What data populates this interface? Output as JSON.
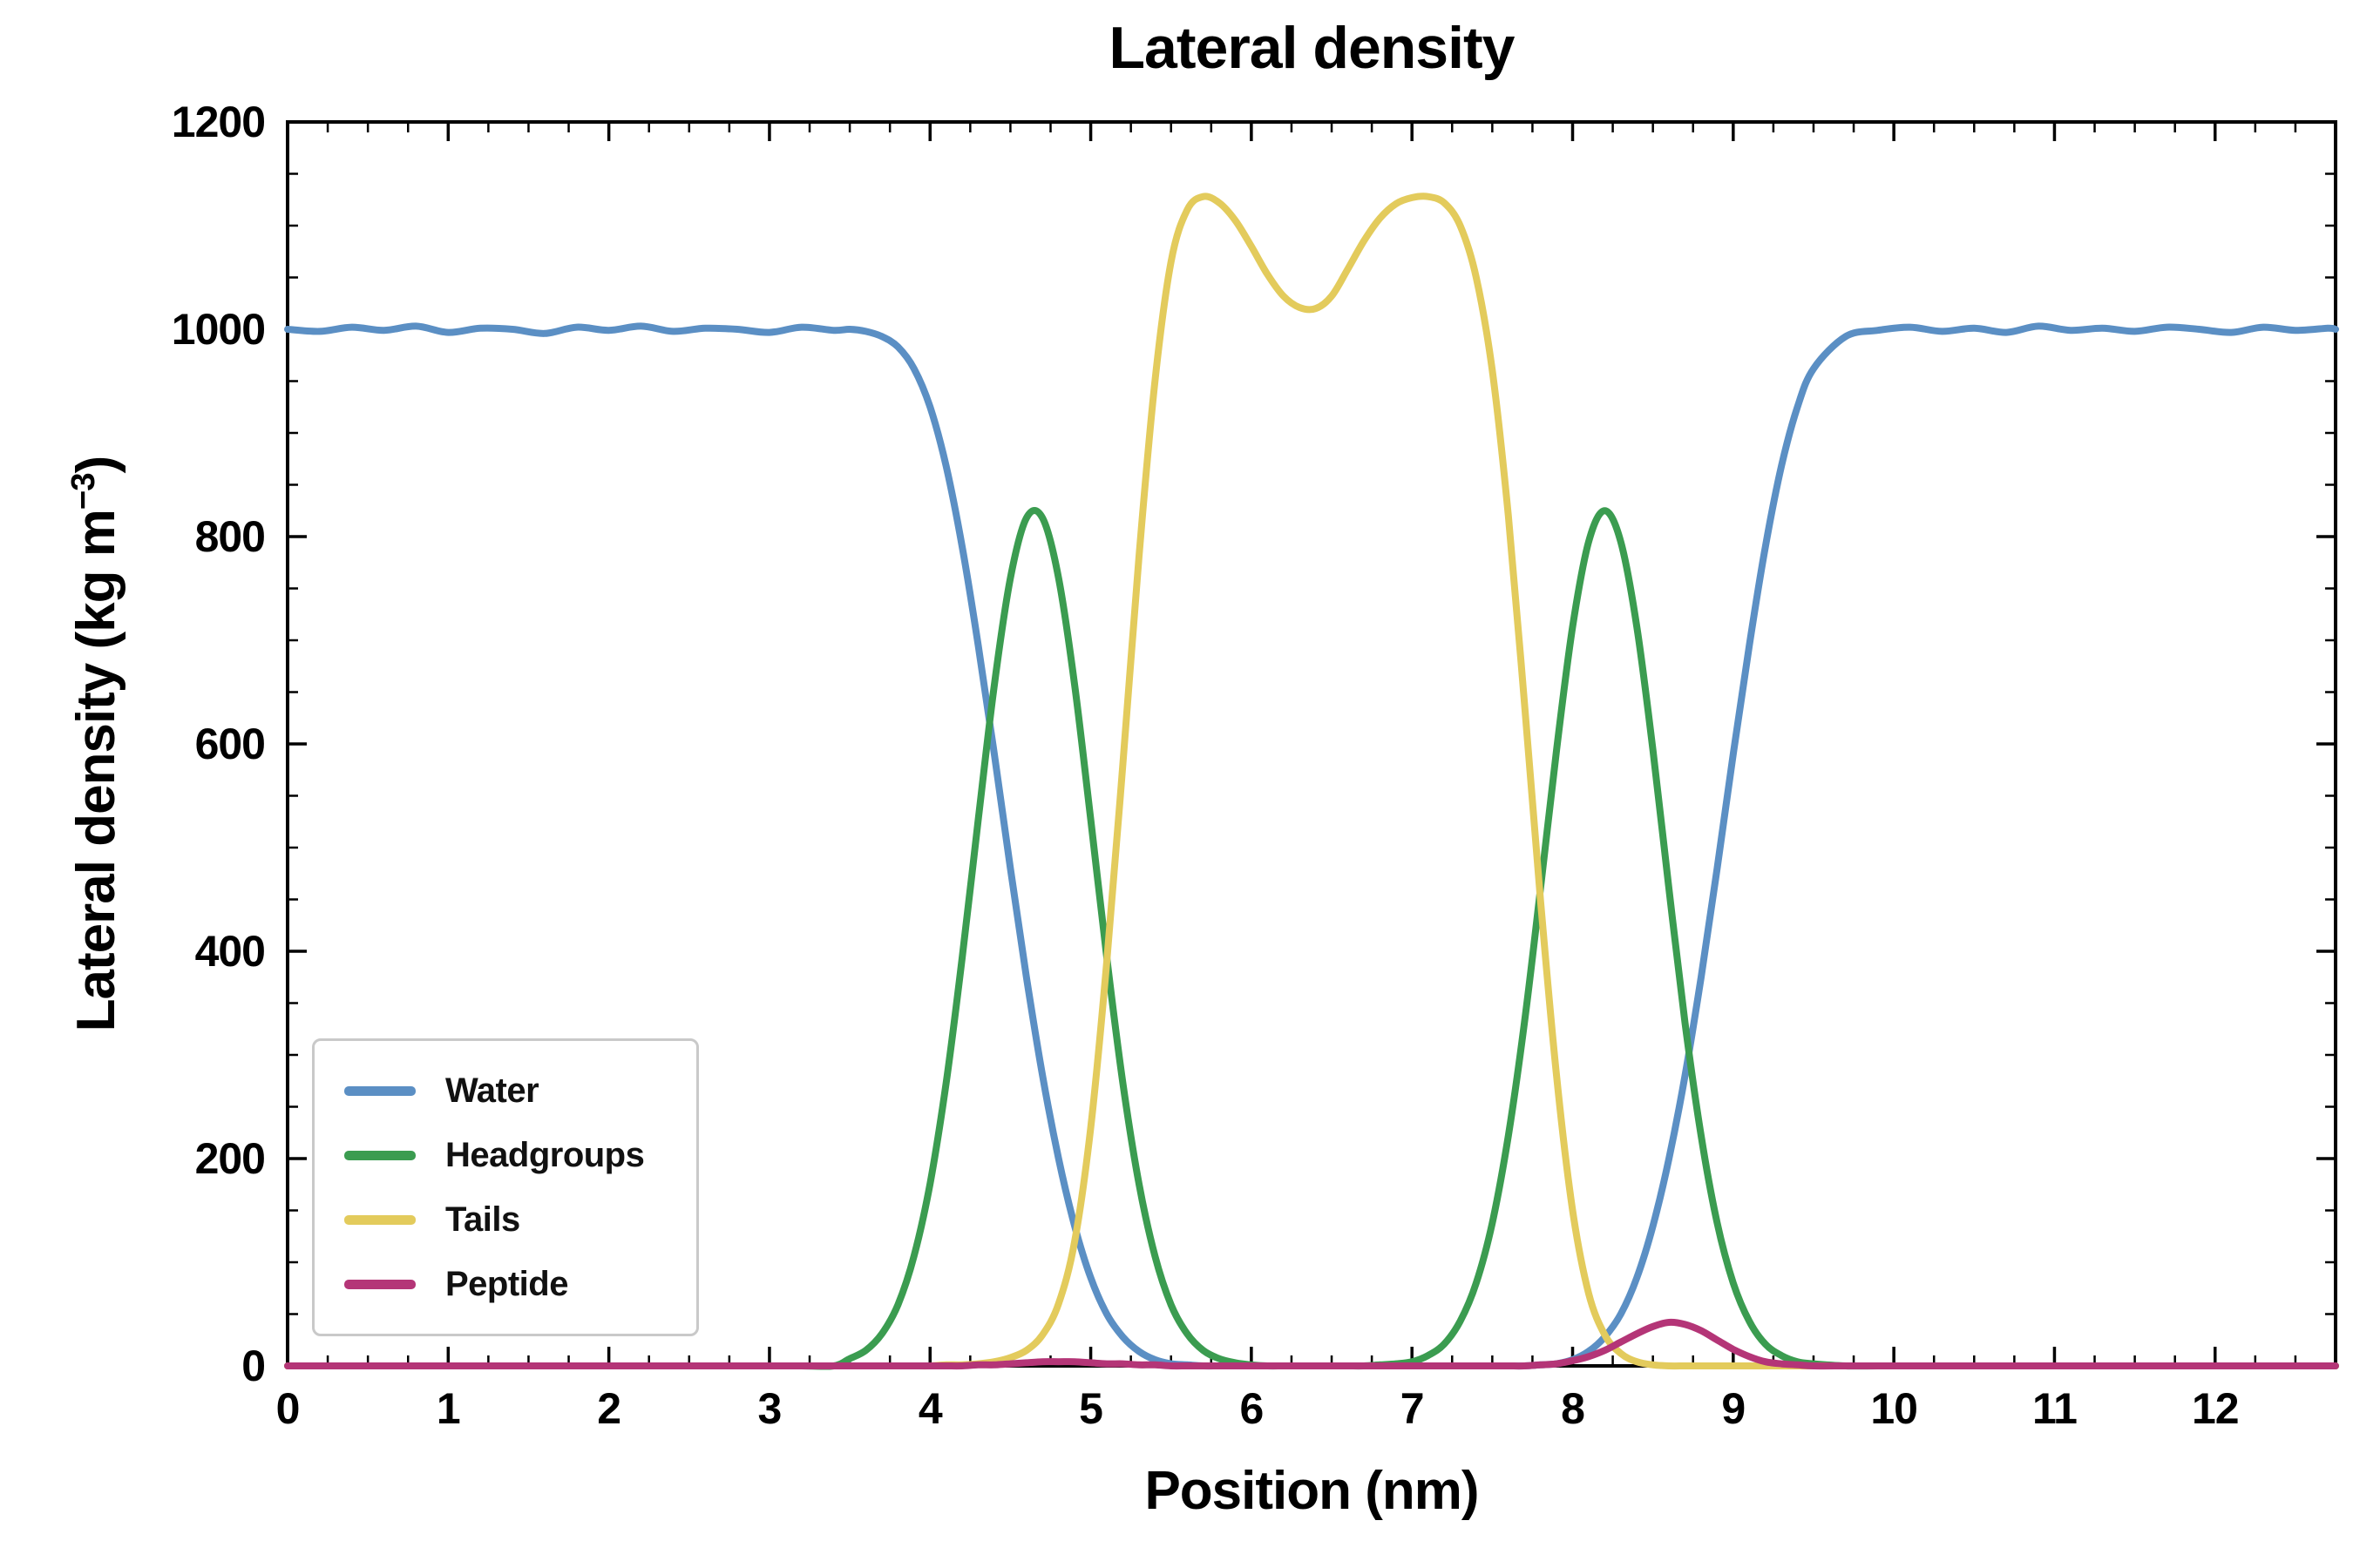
{
  "chart_data": {
    "type": "line",
    "title": "Lateral density",
    "xlabel": "Position (nm)",
    "ylabel": "Lateral density (kg m−3)",
    "ylabel_parts": {
      "pre": "Lateral density (kg m",
      "sup": "−3",
      "post": ")"
    },
    "xlim": [
      0,
      12.75
    ],
    "ylim": [
      0,
      1200
    ],
    "xticks": [
      0,
      1,
      2,
      3,
      4,
      5,
      6,
      7,
      8,
      9,
      10,
      11,
      12
    ],
    "yticks": [
      0,
      200,
      400,
      600,
      800,
      1000,
      1200
    ],
    "x_minor_step": 0.25,
    "y_minor_step": 50,
    "grid": false,
    "legend_position": "lower-left",
    "x": [
      0,
      0.2,
      0.4,
      0.6,
      0.8,
      1.0,
      1.2,
      1.4,
      1.6,
      1.8,
      2.0,
      2.2,
      2.4,
      2.6,
      2.8,
      3.0,
      3.2,
      3.4,
      3.5,
      3.6,
      3.7,
      3.8,
      3.9,
      4.0,
      4.1,
      4.2,
      4.3,
      4.4,
      4.5,
      4.6,
      4.7,
      4.8,
      4.9,
      5.0,
      5.1,
      5.2,
      5.3,
      5.4,
      5.5,
      5.6,
      5.7,
      5.8,
      5.9,
      6.0,
      6.1,
      6.2,
      6.3,
      6.4,
      6.5,
      6.6,
      6.7,
      6.8,
      6.9,
      7.0,
      7.1,
      7.2,
      7.3,
      7.4,
      7.5,
      7.6,
      7.7,
      7.8,
      7.9,
      8.0,
      8.1,
      8.2,
      8.3,
      8.4,
      8.5,
      8.6,
      8.7,
      8.8,
      8.9,
      9.0,
      9.1,
      9.2,
      9.3,
      9.4,
      9.5,
      9.7,
      9.9,
      10.1,
      10.3,
      10.5,
      10.7,
      10.9,
      11.1,
      11.3,
      11.5,
      11.7,
      11.9,
      12.1,
      12.3,
      12.5,
      12.7,
      12.75
    ],
    "series": [
      {
        "name": "Water",
        "color": "#5b8fc4",
        "values": [
          1000,
          998,
          1002,
          999,
          1003,
          997,
          1001,
          1000,
          996,
          1002,
          999,
          1003,
          998,
          1001,
          1000,
          997,
          1002,
          999,
          1000,
          998,
          993,
          983,
          962,
          925,
          868,
          790,
          695,
          590,
          480,
          375,
          280,
          200,
          135,
          85,
          50,
          28,
          14,
          6,
          2,
          1,
          0,
          0,
          0,
          0,
          0,
          0,
          0,
          0,
          0,
          0,
          0,
          0,
          0,
          0,
          0,
          0,
          0,
          0,
          0,
          0,
          0,
          1,
          2,
          6,
          14,
          28,
          50,
          85,
          135,
          200,
          280,
          375,
          480,
          590,
          695,
          790,
          868,
          925,
          962,
          993,
          999,
          1002,
          998,
          1001,
          997,
          1003,
          999,
          1001,
          998,
          1002,
          1000,
          997,
          1002,
          999,
          1001,
          1000
        ]
      },
      {
        "name": "Headgroups",
        "color": "#3b9c50",
        "values": [
          0,
          0,
          0,
          0,
          0,
          0,
          0,
          0,
          0,
          0,
          0,
          0,
          0,
          0,
          0,
          0,
          0,
          0,
          7,
          15,
          31,
          59,
          106,
          176,
          273,
          394,
          527,
          657,
          760,
          818,
          818,
          760,
          657,
          527,
          394,
          273,
          176,
          106,
          59,
          31,
          15,
          7,
          3,
          1,
          0,
          0,
          0,
          0,
          0,
          0,
          0,
          1,
          2,
          4,
          10,
          21,
          43,
          80,
          138,
          222,
          331,
          460,
          594,
          713,
          795,
          825,
          795,
          713,
          594,
          460,
          331,
          222,
          138,
          80,
          43,
          21,
          10,
          4,
          2,
          0,
          0,
          0,
          0,
          0,
          0,
          0,
          0,
          0,
          0,
          0,
          0,
          0,
          0,
          0,
          0,
          0
        ]
      },
      {
        "name": "Tails",
        "color": "#e3cb5c",
        "values": [
          0,
          0,
          0,
          0,
          0,
          0,
          0,
          0,
          0,
          0,
          0,
          0,
          0,
          0,
          0,
          0,
          0,
          0,
          0,
          0,
          0,
          0,
          0,
          0,
          1,
          1,
          2,
          4,
          8,
          15,
          30,
          60,
          120,
          230,
          390,
          580,
          780,
          950,
          1065,
          1115,
          1128,
          1122,
          1105,
          1080,
          1053,
          1032,
          1021,
          1020,
          1032,
          1058,
          1085,
          1107,
          1121,
          1127,
          1128,
          1122,
          1100,
          1050,
          960,
          820,
          640,
          450,
          280,
          150,
          70,
          30,
          12,
          4,
          1,
          0,
          0,
          0,
          0,
          0,
          0,
          0,
          0,
          0,
          0,
          0,
          0,
          0,
          0,
          0,
          0,
          0,
          0,
          0,
          0,
          0,
          0,
          0,
          0,
          0,
          0,
          0
        ]
      },
      {
        "name": "Peptide",
        "color": "#b43577",
        "values": [
          0,
          0,
          0,
          0,
          0,
          0,
          0,
          0,
          0,
          0,
          0,
          0,
          0,
          0,
          0,
          0,
          0,
          0,
          0,
          0,
          0,
          0,
          0,
          0,
          0,
          0,
          1,
          1,
          2,
          3,
          4,
          4,
          4,
          3,
          2,
          2,
          1,
          1,
          0,
          0,
          0,
          0,
          0,
          0,
          0,
          0,
          0,
          0,
          0,
          0,
          0,
          0,
          0,
          0,
          0,
          0,
          0,
          0,
          0,
          0,
          0,
          1,
          2,
          5,
          9,
          15,
          23,
          31,
          38,
          42,
          40,
          34,
          25,
          16,
          9,
          4,
          2,
          1,
          0,
          0,
          0,
          0,
          0,
          0,
          0,
          0,
          0,
          0,
          0,
          0,
          0,
          0,
          0,
          0,
          0,
          0
        ]
      }
    ]
  }
}
